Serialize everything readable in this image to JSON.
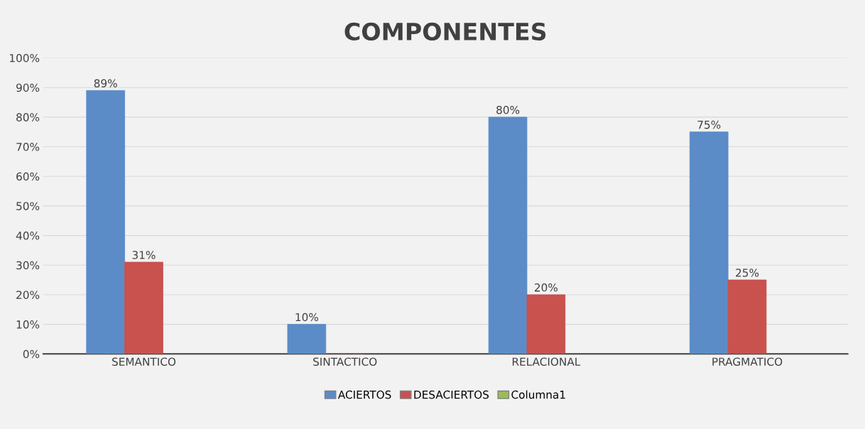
{
  "chart_data": {
    "type": "bar",
    "title": "COMPONENTES",
    "categories": [
      "SEMANTICO",
      "SINTACTICO",
      "RELACIONAL",
      "PRAGMATICO"
    ],
    "series": [
      {
        "name": "ACIERTOS",
        "color": "#5b8cc8",
        "values": [
          89,
          10,
          80,
          75
        ],
        "value_labels": [
          "89%",
          "10%",
          "80%",
          "75%"
        ]
      },
      {
        "name": "DESACIERTOS",
        "color": "#c9514e",
        "values": [
          31,
          0,
          20,
          25
        ],
        "value_labels": [
          "31%",
          null,
          "20%",
          "25%"
        ]
      },
      {
        "name": "Columna1",
        "color": "#9bbb59",
        "values": [
          null,
          null,
          null,
          null
        ]
      }
    ],
    "ylim": [
      0,
      100
    ],
    "yticks": [
      {
        "value": 0,
        "label": "0%"
      },
      {
        "value": 10,
        "label": "10%"
      },
      {
        "value": 20,
        "label": "20%"
      },
      {
        "value": 30,
        "label": "30%"
      },
      {
        "value": 40,
        "label": "40%"
      },
      {
        "value": 50,
        "label": "50%"
      },
      {
        "value": 60,
        "label": "60%"
      },
      {
        "value": 70,
        "label": "70%"
      },
      {
        "value": 80,
        "label": "80%"
      },
      {
        "value": 90,
        "label": "90%"
      },
      {
        "value": 100,
        "label": "100%"
      }
    ],
    "grid": "y",
    "legend": "bottom"
  }
}
